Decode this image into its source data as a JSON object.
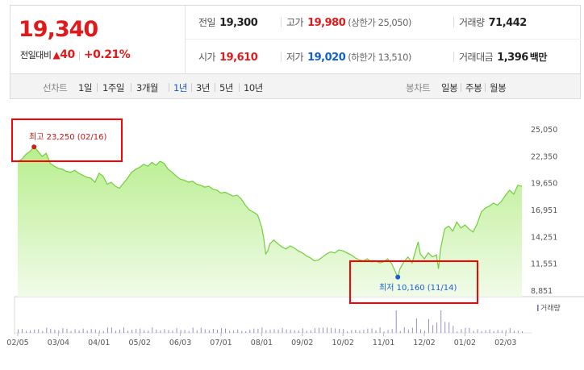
{
  "quote": {
    "price": "19,340",
    "change_label": "전일대비",
    "change_arrow": "▲",
    "change_amount": "40",
    "change_percent": "+0.21%",
    "prev_close": {
      "label": "전일",
      "value": "19,300"
    },
    "high": {
      "label": "고가",
      "value": "19,980",
      "limit_label": "(상한가 25,050)"
    },
    "volume": {
      "label": "거래량",
      "value": "71,442"
    },
    "open": {
      "label": "시가",
      "value": "19,610"
    },
    "low": {
      "label": "저가",
      "value": "19,020",
      "limit_label": "(하한가 13,510)"
    },
    "trade_value": {
      "label": "거래대금",
      "value": "1,396",
      "unit": "백만"
    }
  },
  "toolbar": {
    "line_chart_label": "선차트",
    "periods": [
      "1일",
      "1주일",
      "3개월",
      "1년",
      "3년",
      "5년",
      "10년"
    ],
    "active_period": "1년",
    "candle_chart_label": "봉차트",
    "candle_periods": [
      "일봉",
      "주봉",
      "월봉"
    ]
  },
  "colors": {
    "up": "#e01a1a",
    "down": "#1060d0",
    "line": "#6fcf3a",
    "fill_top": "#b8ee8e",
    "fill_bottom": "#f1fbe8",
    "highlight": "#ff0000",
    "volume_bar": "#9a8fc8"
  },
  "chart_data": {
    "type": "area",
    "y_ticks": [
      "25,050",
      "22,350",
      "19,650",
      "16,951",
      "14,251",
      "11,551",
      "8,851"
    ],
    "ylim": [
      8851,
      25050
    ],
    "x_ticks": [
      "02/05",
      "03/04",
      "04/01",
      "05/02",
      "06/03",
      "07/01",
      "08/01",
      "09/02",
      "10/02",
      "11/01",
      "12/02",
      "01/02",
      "02/03"
    ],
    "x_index_range": [
      0,
      250
    ],
    "tick_index": [
      0,
      20,
      40,
      60,
      80,
      100,
      120,
      140,
      160,
      180,
      200,
      220,
      240
    ],
    "max_annotation": {
      "label": "최고",
      "value": "23,250",
      "date": "(02/16)",
      "value_num": 23250,
      "index": 8
    },
    "min_annotation": {
      "label": "최저",
      "value": "10,160",
      "date": "(11/14)",
      "value_num": 10160,
      "index": 187
    },
    "volume_label": "거래량",
    "points": [
      [
        0,
        21800
      ],
      [
        2,
        22000
      ],
      [
        4,
        22500
      ],
      [
        6,
        22800
      ],
      [
        8,
        23250
      ],
      [
        10,
        22800
      ],
      [
        12,
        22300
      ],
      [
        14,
        22600
      ],
      [
        15,
        22100
      ],
      [
        16,
        21600
      ],
      [
        18,
        21300
      ],
      [
        20,
        21100
      ],
      [
        22,
        21000
      ],
      [
        24,
        20800
      ],
      [
        26,
        20700
      ],
      [
        28,
        20900
      ],
      [
        30,
        20600
      ],
      [
        32,
        20400
      ],
      [
        34,
        20200
      ],
      [
        36,
        20100
      ],
      [
        38,
        19700
      ],
      [
        40,
        20600
      ],
      [
        42,
        20300
      ],
      [
        44,
        19500
      ],
      [
        46,
        19700
      ],
      [
        48,
        19300
      ],
      [
        50,
        19100
      ],
      [
        52,
        19600
      ],
      [
        54,
        20100
      ],
      [
        56,
        20700
      ],
      [
        58,
        21000
      ],
      [
        60,
        21200
      ],
      [
        62,
        21500
      ],
      [
        64,
        21300
      ],
      [
        66,
        21700
      ],
      [
        68,
        21400
      ],
      [
        70,
        21800
      ],
      [
        72,
        21600
      ],
      [
        74,
        21000
      ],
      [
        76,
        20700
      ],
      [
        78,
        20300
      ],
      [
        80,
        20000
      ],
      [
        82,
        19900
      ],
      [
        84,
        19700
      ],
      [
        86,
        19800
      ],
      [
        88,
        19500
      ],
      [
        90,
        19400
      ],
      [
        92,
        19200
      ],
      [
        94,
        19300
      ],
      [
        96,
        19000
      ],
      [
        98,
        18900
      ],
      [
        100,
        18600
      ],
      [
        102,
        18700
      ],
      [
        104,
        18500
      ],
      [
        106,
        18300
      ],
      [
        108,
        18400
      ],
      [
        110,
        18000
      ],
      [
        112,
        17400
      ],
      [
        114,
        16900
      ],
      [
        116,
        16700
      ],
      [
        118,
        16400
      ],
      [
        120,
        15200
      ],
      [
        121,
        14100
      ],
      [
        122,
        12500
      ],
      [
        123,
        12800
      ],
      [
        124,
        13500
      ],
      [
        126,
        13900
      ],
      [
        128,
        13500
      ],
      [
        130,
        13200
      ],
      [
        132,
        13000
      ],
      [
        134,
        13300
      ],
      [
        136,
        13100
      ],
      [
        138,
        12800
      ],
      [
        140,
        12600
      ],
      [
        142,
        12300
      ],
      [
        144,
        12100
      ],
      [
        146,
        11800
      ],
      [
        148,
        11900
      ],
      [
        150,
        12200
      ],
      [
        152,
        12500
      ],
      [
        154,
        12700
      ],
      [
        156,
        12600
      ],
      [
        158,
        12900
      ],
      [
        160,
        12800
      ],
      [
        162,
        12600
      ],
      [
        164,
        12400
      ],
      [
        166,
        12100
      ],
      [
        168,
        11900
      ],
      [
        170,
        11800
      ],
      [
        172,
        12000
      ],
      [
        174,
        11700
      ],
      [
        176,
        11800
      ],
      [
        178,
        11600
      ],
      [
        180,
        11700
      ],
      [
        182,
        12000
      ],
      [
        184,
        11500
      ],
      [
        186,
        10600
      ],
      [
        187,
        10160
      ],
      [
        188,
        11000
      ],
      [
        190,
        11700
      ],
      [
        192,
        12200
      ],
      [
        194,
        11600
      ],
      [
        196,
        13000
      ],
      [
        197,
        13700
      ],
      [
        198,
        12500
      ],
      [
        200,
        12000
      ],
      [
        202,
        12600
      ],
      [
        204,
        12200
      ],
      [
        206,
        12400
      ],
      [
        207,
        11000
      ],
      [
        208,
        13000
      ],
      [
        210,
        15000
      ],
      [
        212,
        15300
      ],
      [
        214,
        14800
      ],
      [
        216,
        15700
      ],
      [
        218,
        15100
      ],
      [
        220,
        15400
      ],
      [
        222,
        15000
      ],
      [
        224,
        14700
      ],
      [
        226,
        15500
      ],
      [
        228,
        16700
      ],
      [
        230,
        17100
      ],
      [
        232,
        17300
      ],
      [
        234,
        17600
      ],
      [
        236,
        17400
      ],
      [
        238,
        17800
      ],
      [
        240,
        18400
      ],
      [
        242,
        18900
      ],
      [
        244,
        18500
      ],
      [
        246,
        19400
      ],
      [
        248,
        19300
      ]
    ]
  }
}
